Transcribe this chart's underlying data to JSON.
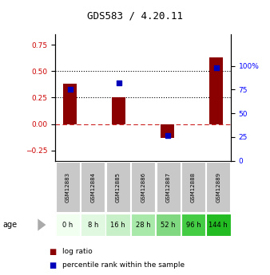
{
  "title": "GDS583 / 4.20.11",
  "samples": [
    "GSM12883",
    "GSM12884",
    "GSM12885",
    "GSM12886",
    "GSM12887",
    "GSM12888",
    "GSM12889"
  ],
  "ages": [
    "0 h",
    "8 h",
    "16 h",
    "28 h",
    "52 h",
    "96 h",
    "144 h"
  ],
  "age_colors": [
    "#f0fff0",
    "#e0f8e0",
    "#c8f0c8",
    "#a8e8a8",
    "#80d880",
    "#44cc44",
    "#22bb22"
  ],
  "log_ratios": [
    0.38,
    0.0,
    0.25,
    0.0,
    -0.13,
    0.0,
    0.63
  ],
  "percentile_ranks": [
    75,
    0,
    82,
    0,
    27,
    0,
    98
  ],
  "ylim_left": [
    -0.35,
    0.85
  ],
  "ylim_right": [
    0,
    133
  ],
  "yticks_left": [
    -0.25,
    0,
    0.25,
    0.5,
    0.75
  ],
  "yticks_right": [
    0,
    25,
    50,
    75,
    100
  ],
  "ytick_labels_right": [
    "0",
    "25",
    "50",
    "75",
    "100%"
  ],
  "hline_y": [
    0.25,
    0.5
  ],
  "zero_line_y": 0,
  "bar_color": "#8b0000",
  "scatter_color": "#0000bb",
  "title_fontsize": 9,
  "sample_bg_color": "#c8c8c8",
  "age_label": "age"
}
